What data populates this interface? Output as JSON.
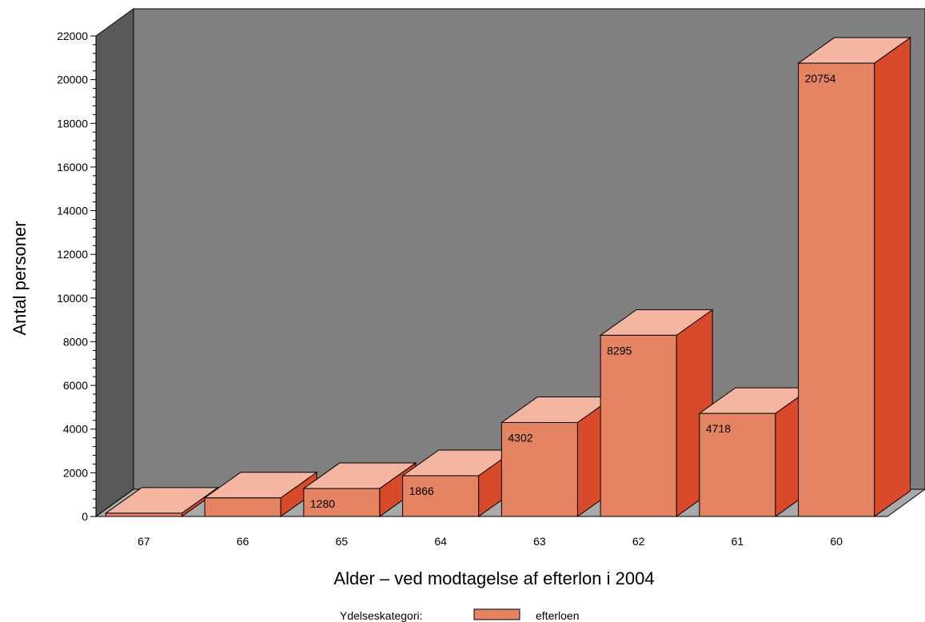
{
  "chart_data": {
    "type": "bar",
    "style": "3d",
    "categories": [
      "67",
      "66",
      "65",
      "64",
      "63",
      "62",
      "61",
      "60"
    ],
    "series": [
      {
        "name": "efterloen",
        "values": [
          150,
          850,
          1280,
          1866,
          4302,
          8295,
          4718,
          20754
        ],
        "labels": [
          "",
          "",
          "1280",
          "1866",
          "4302",
          "8295",
          "4718",
          "20754"
        ],
        "color": "#e58462"
      }
    ],
    "ylabel": "Antal personer",
    "xlabel": "Alder – ved modtagelse af efterlon i 2004",
    "ylim": [
      0,
      22000
    ],
    "yticks": [
      0,
      2000,
      4000,
      6000,
      8000,
      10000,
      12000,
      14000,
      16000,
      18000,
      20000,
      22000
    ],
    "legend": {
      "title": "Ydelseskategori:",
      "position": "bottom-center"
    },
    "colors": {
      "back_wall": "#808080",
      "side_wall": "#595959",
      "floor": "#a9a9a9",
      "bar_front": "#e58462",
      "bar_top": "#f4b5a1",
      "bar_side": "#d84a29"
    }
  }
}
